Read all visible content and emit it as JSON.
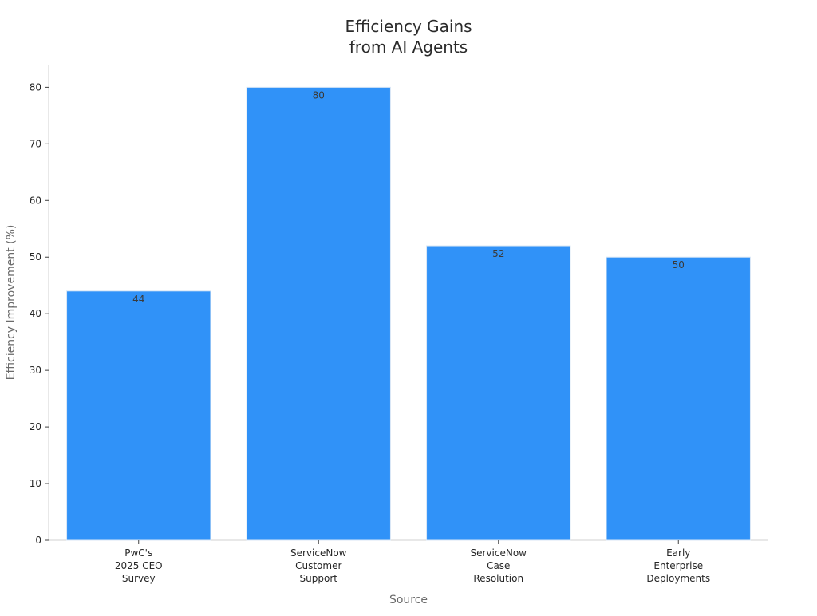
{
  "chart_data": {
    "type": "bar",
    "title_lines": [
      "Efficiency Gains",
      "from AI Agents"
    ],
    "xlabel": "Source",
    "ylabel": "Efficiency Improvement (%)",
    "categories": [
      [
        "PwC's",
        "2025 CEO",
        "Survey"
      ],
      [
        "ServiceNow",
        "Customer",
        "Support"
      ],
      [
        "ServiceNow",
        "Case",
        "Resolution"
      ],
      [
        "Early",
        "Enterprise",
        "Deployments"
      ]
    ],
    "values": [
      44,
      80,
      52,
      50
    ],
    "data_labels": [
      "44",
      "80",
      "52",
      "50"
    ],
    "yticks": [
      0,
      10,
      20,
      30,
      40,
      50,
      60,
      70,
      80
    ],
    "ylim": [
      0,
      84
    ],
    "grid": false,
    "bar_color": "#3092f8"
  }
}
